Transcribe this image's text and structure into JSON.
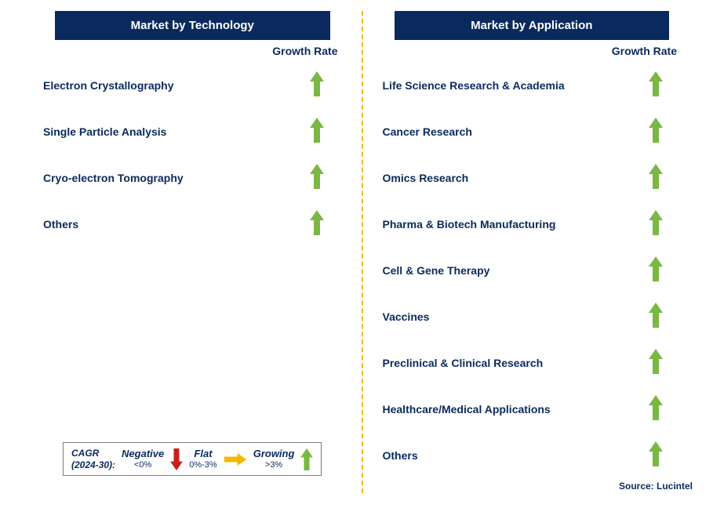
{
  "colors": {
    "header_bg": "#0a2a5e",
    "header_text": "#ffffff",
    "label_text": "#0a2a5e",
    "arrow_green": "#7ab843",
    "arrow_red": "#c81e1e",
    "arrow_yellow": "#f5b800",
    "divider": "#f5b800",
    "background": "#ffffff"
  },
  "left": {
    "title": "Market by Technology",
    "growth_label": "Growth Rate",
    "rows": [
      {
        "label": "Electron Crystallography",
        "growth": "up"
      },
      {
        "label": "Single Particle Analysis",
        "growth": "up"
      },
      {
        "label": "Cryo-electron Tomography",
        "growth": "up"
      },
      {
        "label": "Others",
        "growth": "up"
      }
    ]
  },
  "right": {
    "title": "Market by Application",
    "growth_label": "Growth Rate",
    "rows": [
      {
        "label": "Life Science Research & Academia",
        "growth": "up"
      },
      {
        "label": "Cancer Research",
        "growth": "up"
      },
      {
        "label": "Omics Research",
        "growth": "up"
      },
      {
        "label": "Pharma & Biotech Manufacturing",
        "growth": "up"
      },
      {
        "label": "Cell & Gene Therapy",
        "growth": "up"
      },
      {
        "label": "Vaccines",
        "growth": "up"
      },
      {
        "label": "Preclinical & Clinical Research",
        "growth": "up"
      },
      {
        "label": "Healthcare/Medical Applications",
        "growth": "up"
      },
      {
        "label": "Others",
        "growth": "up"
      }
    ]
  },
  "legend": {
    "cagr_line1": "CAGR",
    "cagr_line2": "(2024-30):",
    "negative_label": "Negative",
    "negative_range": "<0%",
    "flat_label": "Flat",
    "flat_range": "0%-3%",
    "growing_label": "Growing",
    "growing_range": ">3%"
  },
  "source": "Source: Lucintel",
  "arrow_size": {
    "w": 18,
    "h": 32
  }
}
